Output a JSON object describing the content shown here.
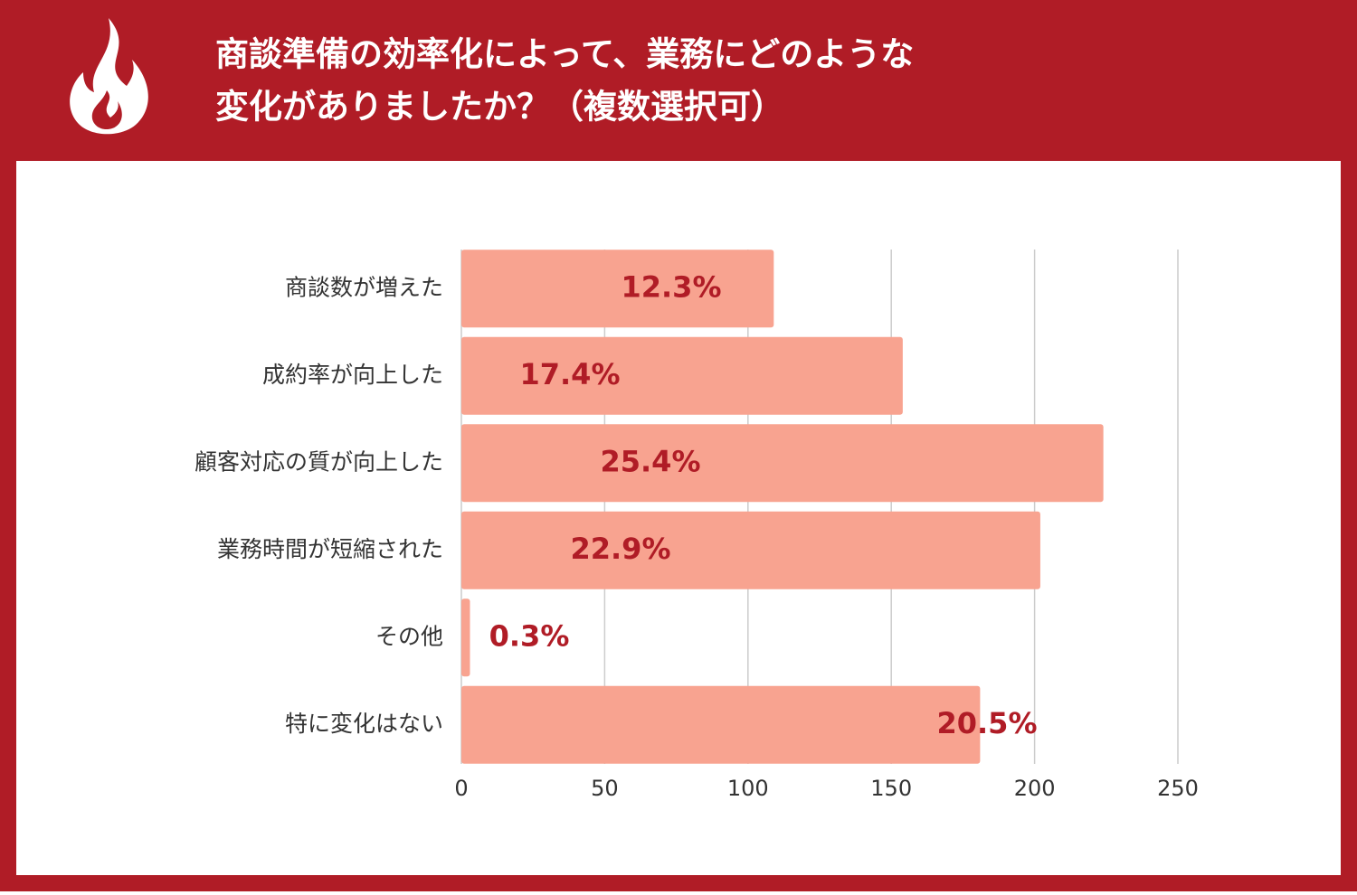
{
  "chart_data": {
    "type": "bar",
    "orientation": "horizontal",
    "title_lines": [
      "商談準備の効率化によって、業務にどのような",
      "変化がありましたか？（複数選択可）"
    ],
    "categories": [
      "商談数が増えた",
      "成約率が向上した",
      "顧客対応の質が向上した",
      "業務時間が短縮された",
      "その他",
      "特に変化はない"
    ],
    "values": [
      109,
      154,
      224,
      202,
      3,
      181
    ],
    "bar_labels": [
      "12.3%",
      "17.4%",
      "25.4%",
      "22.9%",
      "0.3%",
      "20.5%"
    ],
    "color": "#f8a390",
    "xlim": [
      0,
      250
    ],
    "xticks": [
      0,
      50,
      100,
      150,
      200,
      250
    ],
    "grid": true
  }
}
